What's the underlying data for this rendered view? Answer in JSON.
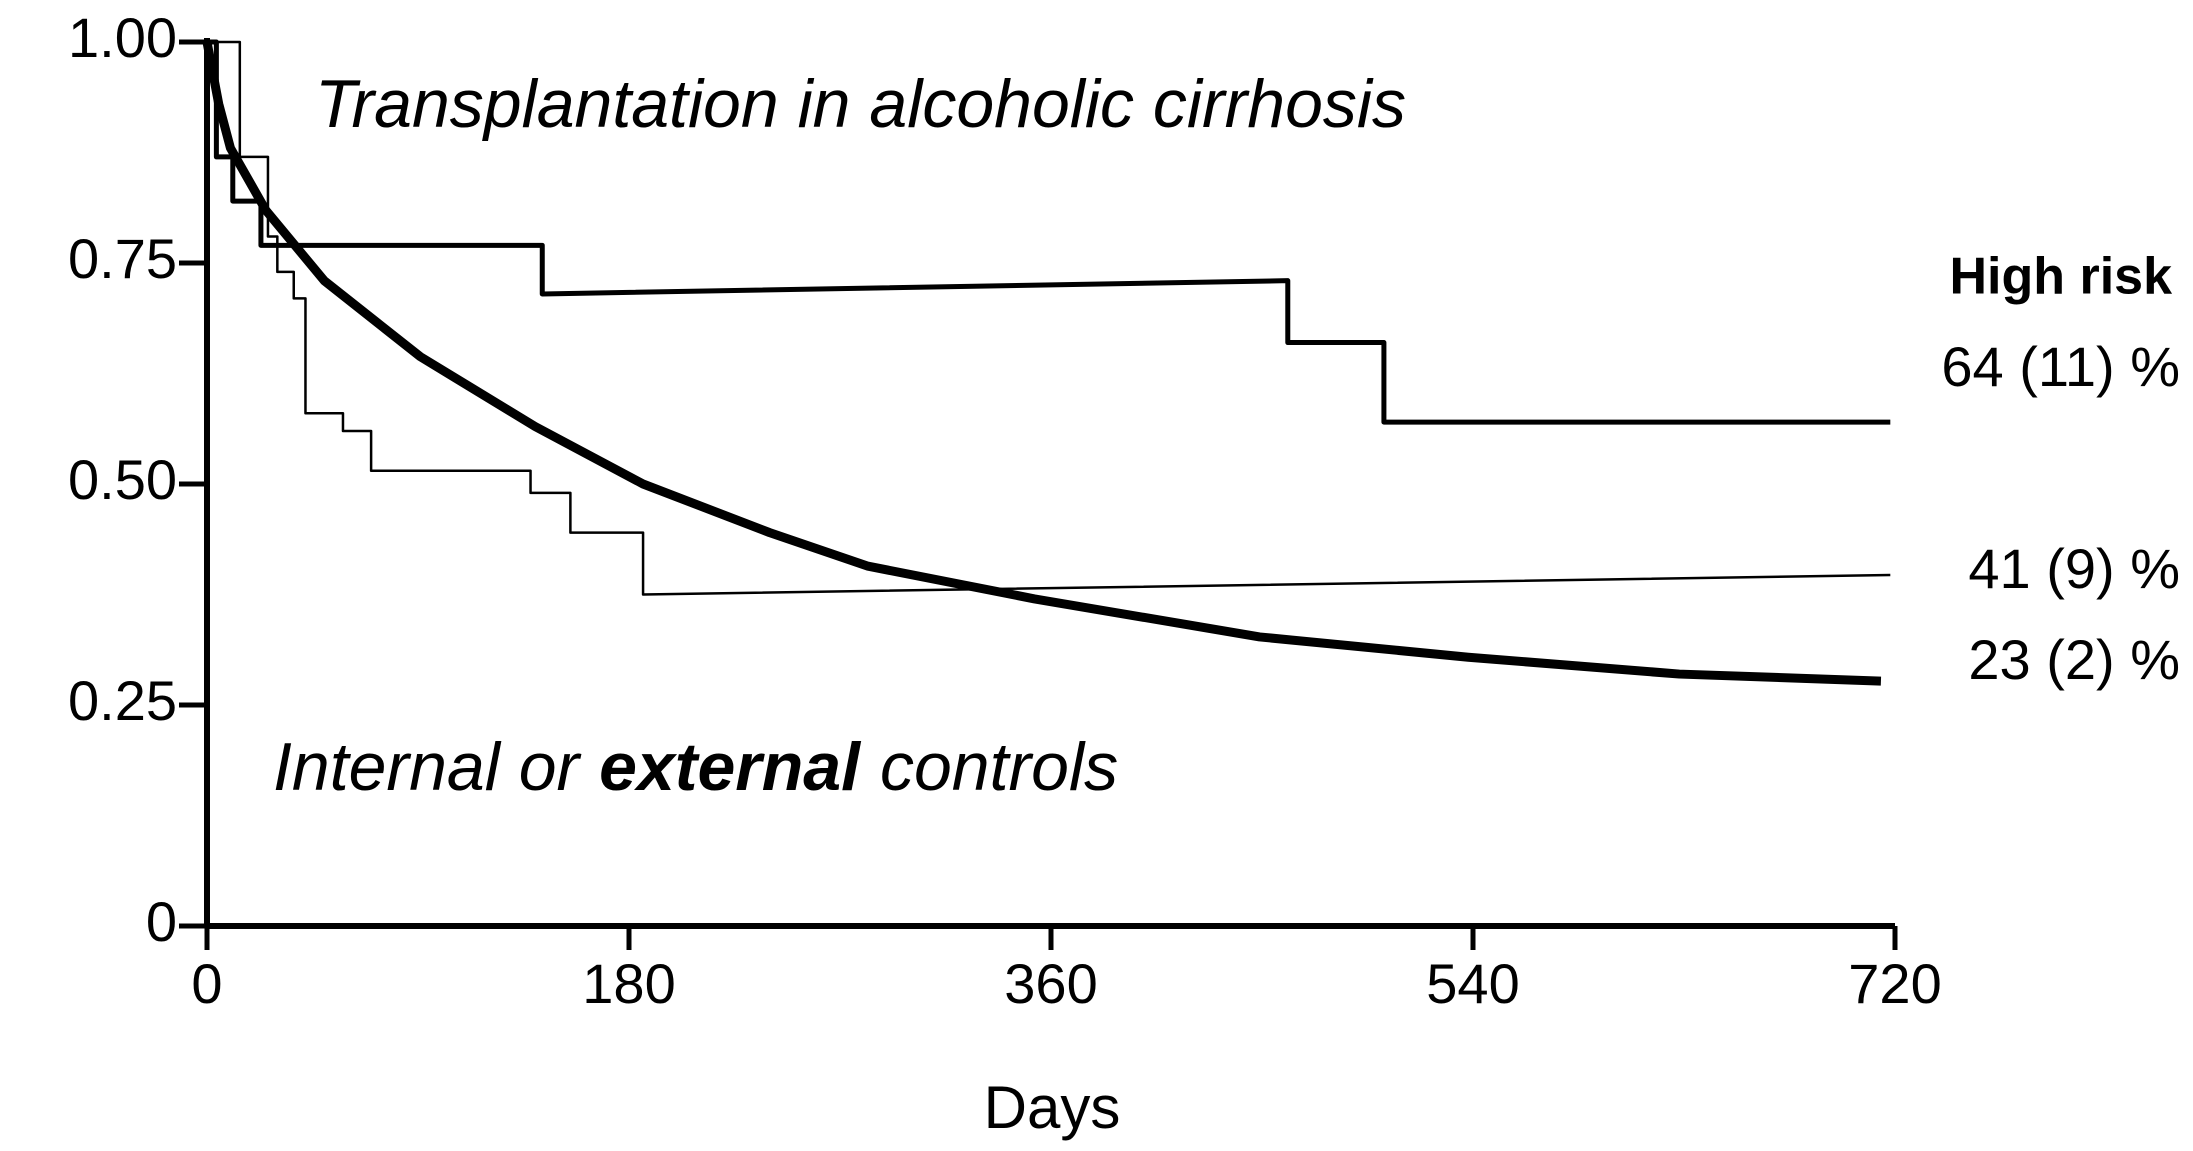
{
  "chart_data": {
    "type": "line",
    "title": "Transplantation in alcoholic cirrhosis",
    "annotations": [
      "Internal or",
      "external",
      "controls",
      "High risk",
      "64 (11) %",
      "41 (9) %",
      "23 (2) %"
    ],
    "x_label": "Days",
    "xlim": [
      0,
      720
    ],
    "xticks": [
      0,
      180,
      360,
      540,
      720
    ],
    "ylim": [
      0,
      1
    ],
    "yticks": [
      {
        "value": 1,
        "label": "1.00"
      },
      {
        "value": 0.75,
        "label": "0.75"
      },
      {
        "value": 0.5,
        "label": "0.50"
      },
      {
        "value": 0.25,
        "label": "0.25"
      },
      0
    ],
    "grid": false,
    "series": [
      {
        "color": "#000000",
        "line_width": 5,
        "x": [
          0,
          4,
          4,
          11,
          11,
          23,
          23,
          143,
          143,
          461,
          461,
          502,
          502,
          718
        ],
        "values": [
          1,
          1,
          0.87,
          0.87,
          0.82,
          0.82,
          0.77,
          0.77,
          0.715,
          0.73,
          0.66,
          0.66,
          0.57,
          0.57
        ]
      },
      {
        "color": "#000000",
        "line_width": 2.5,
        "x": [
          0,
          14,
          14,
          26,
          26,
          30,
          30,
          37,
          37,
          42,
          42,
          58,
          58,
          70,
          70,
          138,
          138,
          155,
          155,
          186,
          186,
          718
        ],
        "values": [
          1,
          1,
          0.87,
          0.87,
          0.78,
          0.78,
          0.74,
          0.74,
          0.71,
          0.71,
          0.58,
          0.58,
          0.56,
          0.56,
          0.515,
          0.515,
          0.49,
          0.49,
          0.445,
          0.445,
          0.375,
          0.397
        ]
      },
      {
        "color": "#000000",
        "line_width": 9,
        "x": [
          0,
          5,
          10,
          25,
          50,
          91,
          140,
          186,
          240,
          282,
          353,
          449,
          538,
          628,
          714
        ],
        "values": [
          1,
          0.93,
          0.88,
          0.81,
          0.73,
          0.644,
          0.565,
          0.5,
          0.445,
          0.407,
          0.37,
          0.327,
          0.304,
          0.285,
          0.277
        ]
      }
    ]
  }
}
